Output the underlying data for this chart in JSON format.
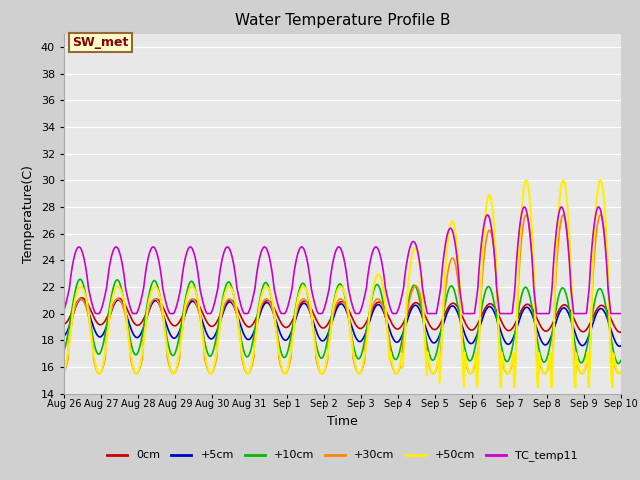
{
  "title": "Water Temperature Profile B",
  "xlabel": "Time",
  "ylabel": "Temperature(C)",
  "ylim": [
    14,
    41
  ],
  "yticks": [
    14,
    16,
    18,
    20,
    22,
    24,
    26,
    28,
    30,
    32,
    34,
    36,
    38,
    40
  ],
  "plot_bg_color": "#e8e8e8",
  "sw_met_label": "SW_met",
  "sw_met_bg": "#ffffcc",
  "sw_met_border": "#996633",
  "sw_met_text_color": "#880000",
  "legend_entries": [
    "0cm",
    "+5cm",
    "+10cm",
    "+30cm",
    "+50cm",
    "TC_temp11"
  ],
  "line_colors": [
    "#cc0000",
    "#0000cc",
    "#00bb00",
    "#ff8800",
    "#ffee00",
    "#cc00cc"
  ],
  "line_widths": [
    1.2,
    1.2,
    1.2,
    1.2,
    1.5,
    1.2
  ],
  "xtick_labels": [
    "Aug 26",
    "Aug 27",
    "Aug 28",
    "Aug 29",
    "Aug 30",
    "Aug 31",
    "Sep 1",
    "Sep 2",
    "Sep 3",
    "Sep 4",
    "Sep 5",
    "Sep 6",
    "Sep 7",
    "Sep 8",
    "Sep 9",
    "Sep 10"
  ],
  "n_points": 960
}
